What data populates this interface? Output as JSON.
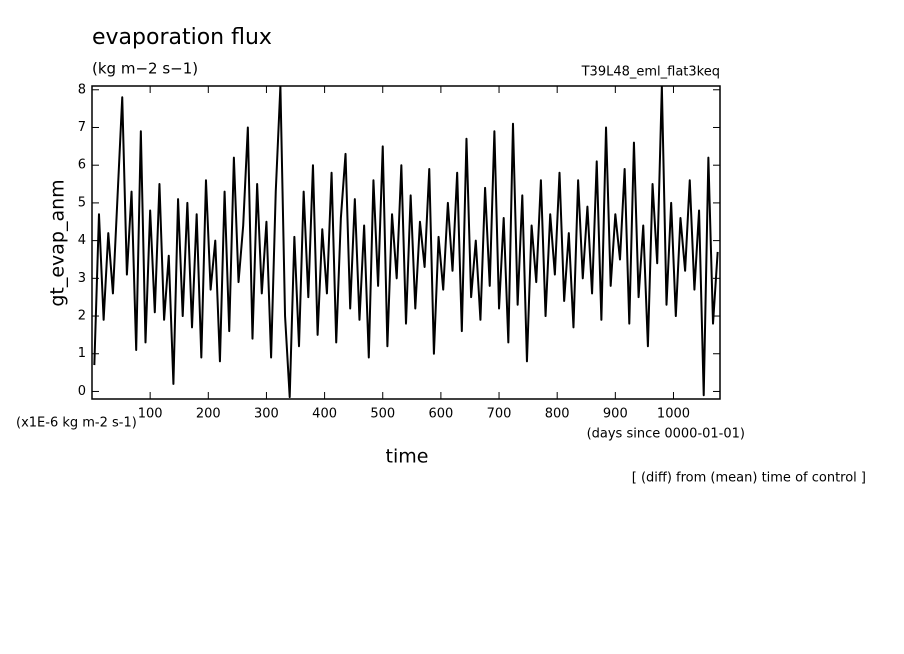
{
  "chart_data": {
    "type": "line",
    "title": "evaporation flux",
    "units": "(kg m−2 s−1)",
    "run_label": "T39L48_eml_flat3keq",
    "y_label": "gt_evap_anm",
    "x_label": "time",
    "y_scale_label": "(x1E-6 kg m-2 s-1)",
    "x_units": "(days since 0000-01-01)",
    "note": "[ (diff) from (mean) time of control ]",
    "xlim": [
      0,
      1080
    ],
    "ylim": [
      -0.2,
      8.1
    ],
    "xticks": [
      100,
      200,
      300,
      400,
      500,
      600,
      700,
      800,
      900,
      1000
    ],
    "yticks": [
      0,
      1,
      2,
      3,
      4,
      5,
      6,
      7,
      8
    ],
    "color": "#000000",
    "x": [
      4,
      12,
      20,
      28,
      36,
      44,
      52,
      60,
      68,
      76,
      84,
      92,
      100,
      108,
      116,
      124,
      132,
      140,
      148,
      156,
      164,
      172,
      180,
      188,
      196,
      204,
      212,
      220,
      228,
      236,
      244,
      252,
      260,
      268,
      276,
      284,
      292,
      300,
      308,
      316,
      324,
      332,
      340,
      348,
      356,
      364,
      372,
      380,
      388,
      396,
      404,
      412,
      420,
      428,
      436,
      444,
      452,
      460,
      468,
      476,
      484,
      492,
      500,
      508,
      516,
      524,
      532,
      540,
      548,
      556,
      564,
      572,
      580,
      588,
      596,
      604,
      612,
      620,
      628,
      636,
      644,
      652,
      660,
      668,
      676,
      684,
      692,
      700,
      708,
      716,
      724,
      732,
      740,
      748,
      756,
      764,
      772,
      780,
      788,
      796,
      804,
      812,
      820,
      828,
      836,
      844,
      852,
      860,
      868,
      876,
      884,
      892,
      900,
      908,
      916,
      924,
      932,
      940,
      948,
      956,
      964,
      972,
      980,
      988,
      996,
      1004,
      1012,
      1020,
      1028,
      1036,
      1044,
      1052,
      1060,
      1068,
      1076
    ],
    "values": [
      0.7,
      4.7,
      1.9,
      4.2,
      2.6,
      5.2,
      7.8,
      3.1,
      5.3,
      1.1,
      6.9,
      1.3,
      4.8,
      2.1,
      5.5,
      1.9,
      3.6,
      0.2,
      5.1,
      2.0,
      5.0,
      1.7,
      4.7,
      0.9,
      5.6,
      2.7,
      4.0,
      0.8,
      5.3,
      1.6,
      6.2,
      2.9,
      4.4,
      7.0,
      1.4,
      5.5,
      2.6,
      4.5,
      0.9,
      5.3,
      8.1,
      2.0,
      -0.15,
      4.1,
      1.2,
      5.3,
      2.5,
      6.0,
      1.5,
      4.3,
      2.6,
      5.8,
      1.3,
      4.6,
      6.3,
      2.2,
      5.1,
      1.9,
      4.4,
      0.9,
      5.6,
      2.8,
      6.5,
      1.2,
      4.7,
      3.0,
      6.0,
      1.8,
      5.2,
      2.2,
      4.5,
      3.3,
      5.9,
      1.0,
      4.1,
      2.7,
      5.0,
      3.2,
      5.8,
      1.6,
      6.7,
      2.5,
      4.0,
      1.9,
      5.4,
      2.8,
      6.9,
      2.2,
      4.6,
      1.3,
      7.1,
      2.3,
      5.2,
      0.8,
      4.4,
      2.9,
      5.6,
      2.0,
      4.7,
      3.1,
      5.8,
      2.4,
      4.2,
      1.7,
      5.6,
      3.0,
      4.9,
      2.6,
      6.1,
      1.9,
      7.0,
      2.8,
      4.7,
      3.5,
      5.9,
      1.8,
      6.6,
      2.5,
      4.4,
      1.2,
      5.5,
      3.4,
      8.1,
      2.3,
      5.0,
      2.0,
      4.6,
      3.2,
      5.6,
      2.7,
      4.8,
      -0.1,
      6.2,
      1.8,
      3.7
    ]
  }
}
